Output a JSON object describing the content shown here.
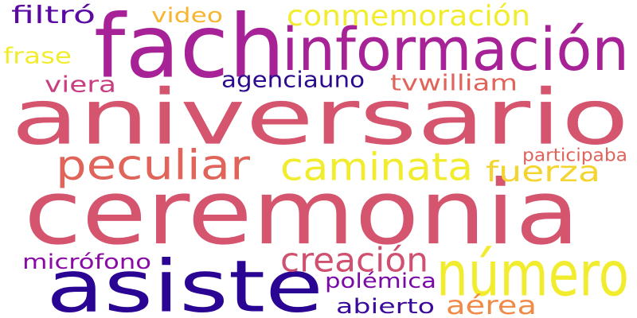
{
  "words": [
    {
      "id": "aniversario",
      "text": "aniversario",
      "color": "#d5546e"
    },
    {
      "id": "ceremonia",
      "text": "ceremonia",
      "color": "#d5546e"
    },
    {
      "id": "fach",
      "text": "fach",
      "color": "#a72197"
    },
    {
      "id": "informacion",
      "text": "información",
      "color": "#a72197"
    },
    {
      "id": "asiste",
      "text": "asiste",
      "color": "#2a0593"
    },
    {
      "id": "numero",
      "text": "número",
      "color": "#f2ec2e"
    },
    {
      "id": "conmemoracion",
      "text": "conmemoración",
      "color": "#f2ec2e"
    },
    {
      "id": "caminata",
      "text": "caminata",
      "color": "#f2ec2e"
    },
    {
      "id": "peculiar",
      "text": "peculiar",
      "color": "#e0645a"
    },
    {
      "id": "creacion",
      "text": "creación",
      "color": "#d0506f"
    },
    {
      "id": "fuerza",
      "text": "fuerza",
      "color": "#f4d430"
    },
    {
      "id": "aerea",
      "text": "aérea",
      "color": "#f08a48"
    },
    {
      "id": "agenciauno",
      "text": "agenciauno",
      "color": "#2d0a8e"
    },
    {
      "id": "tvwilliam",
      "text": "tvwilliam",
      "color": "#e0645a"
    },
    {
      "id": "viera",
      "text": "viera",
      "color": "#c83e80"
    },
    {
      "id": "filtro",
      "text": "filtró",
      "color": "#5a0aa3"
    },
    {
      "id": "video",
      "text": "video",
      "color": "#f7b530"
    },
    {
      "id": "frase",
      "text": "frase",
      "color": "#f2ec2e"
    },
    {
      "id": "microfono",
      "text": "micrófono",
      "color": "#8a0aa5"
    },
    {
      "id": "polemica",
      "text": "polémica",
      "color": "#7a0aa8"
    },
    {
      "id": "abierto",
      "text": "abierto",
      "color": "#3a0a9a"
    },
    {
      "id": "participaba",
      "text": "participaba",
      "color": "#e0645a"
    }
  ]
}
